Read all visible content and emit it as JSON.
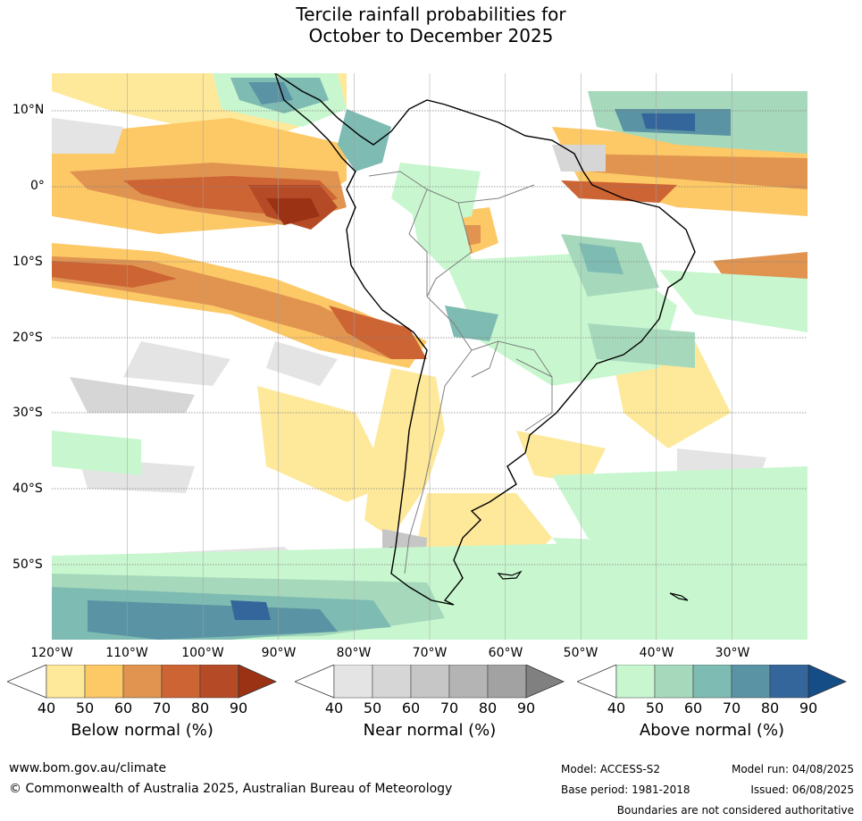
{
  "title_line1": "Tercile rainfall probabilities for",
  "title_line2": "October to December 2025",
  "lat_labels": [
    "10°N",
    "0°",
    "10°S",
    "20°S",
    "30°S",
    "40°S",
    "50°S"
  ],
  "lon_labels": [
    "120°W",
    "110°W",
    "100°W",
    "90°W",
    "80°W",
    "70°W",
    "60°W",
    "50°W",
    "40°W",
    "30°W"
  ],
  "legends": [
    {
      "title": "Below normal (%)",
      "ticks": [
        "40",
        "50",
        "60",
        "70",
        "80",
        "90"
      ],
      "colors": [
        "#ffffff",
        "#fee99a",
        "#fdc866",
        "#e09450",
        "#cd6434",
        "#b54a26",
        "#9c3214"
      ]
    },
    {
      "title": "Near normal (%)",
      "ticks": [
        "40",
        "50",
        "60",
        "70",
        "80",
        "90"
      ],
      "colors": [
        "#ffffff",
        "#e4e4e4",
        "#d6d6d6",
        "#c6c6c6",
        "#b4b4b4",
        "#a2a2a2",
        "#808080"
      ]
    },
    {
      "title": "Above normal (%)",
      "ticks": [
        "40",
        "50",
        "60",
        "70",
        "80",
        "90"
      ],
      "colors": [
        "#ffffff",
        "#c8f7cf",
        "#a6d9bc",
        "#7ebbb2",
        "#5a93a4",
        "#34669b",
        "#154d87"
      ]
    }
  ],
  "footer": {
    "url": "www.bom.gov.au/climate",
    "copyright": "© Commonwealth of Australia 2025, Australian Bureau of Meteorology",
    "model": "Model: ACCESS-S2",
    "base_period": "Base period: 1981-2018",
    "model_run": "Model run: 04/08/2025",
    "issued": "Issued: 06/08/2025",
    "disclaimer": "Boundaries are not considered authoritative"
  }
}
